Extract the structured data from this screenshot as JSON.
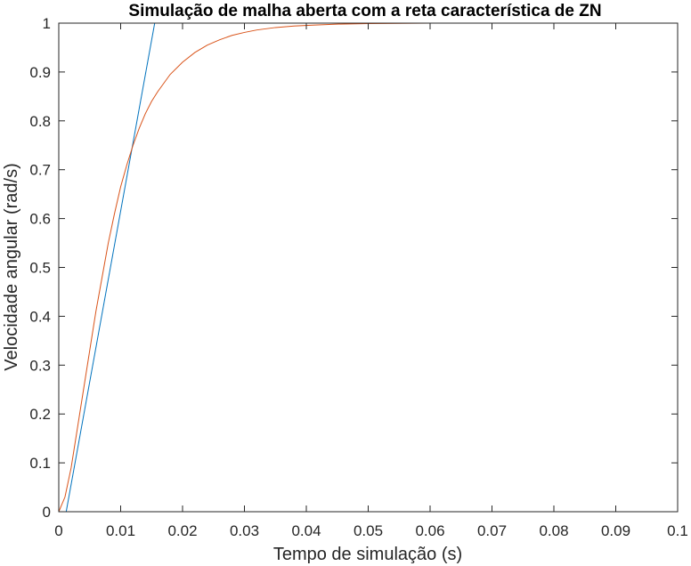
{
  "chart_data": {
    "type": "line",
    "title": "Simulação de malha aberta com a reta característica de ZN",
    "xlabel": "Tempo de simulação (s)",
    "ylabel": "Velocidade angular (rad/s)",
    "xlim": [
      0,
      0.1
    ],
    "ylim": [
      0,
      1
    ],
    "xticks": [
      0,
      0.01,
      0.02,
      0.03,
      0.04,
      0.05,
      0.06,
      0.07,
      0.08,
      0.09,
      0.1
    ],
    "xtick_labels": [
      "0",
      "0.01",
      "0.02",
      "0.03",
      "0.04",
      "0.05",
      "0.06",
      "0.07",
      "0.08",
      "0.09",
      "0.1"
    ],
    "yticks": [
      0,
      0.1,
      0.2,
      0.3,
      0.4,
      0.5,
      0.6,
      0.7,
      0.8,
      0.9,
      1
    ],
    "ytick_labels": [
      "0",
      "0.1",
      "0.2",
      "0.3",
      "0.4",
      "0.5",
      "0.6",
      "0.7",
      "0.8",
      "0.9",
      "1"
    ],
    "grid": false,
    "series": [
      {
        "color": "#0072BD",
        "x": [
          0.0012,
          0.0155
        ],
        "y": [
          0,
          1
        ]
      },
      {
        "color": "#D95319",
        "x": [
          0,
          0.001,
          0.002,
          0.003,
          0.004,
          0.005,
          0.006,
          0.007,
          0.008,
          0.009,
          0.01,
          0.011,
          0.012,
          0.013,
          0.014,
          0.015,
          0.016,
          0.018,
          0.02,
          0.022,
          0.024,
          0.026,
          0.028,
          0.03,
          0.032,
          0.035,
          0.038,
          0.041,
          0.045,
          0.05,
          0.06,
          0.07,
          0.08,
          0.09,
          0.1
        ],
        "y": [
          0,
          0.03,
          0.09,
          0.17,
          0.25,
          0.33,
          0.41,
          0.48,
          0.55,
          0.61,
          0.665,
          0.71,
          0.75,
          0.785,
          0.815,
          0.84,
          0.86,
          0.895,
          0.92,
          0.94,
          0.955,
          0.966,
          0.975,
          0.981,
          0.986,
          0.991,
          0.994,
          0.996,
          0.998,
          0.999,
          1.0,
          1.0,
          1.0,
          1.0,
          1.0
        ]
      },
      {
        "color": "#77AC30",
        "x": [
          0,
          0.1
        ],
        "y": [
          1,
          1
        ]
      }
    ]
  }
}
